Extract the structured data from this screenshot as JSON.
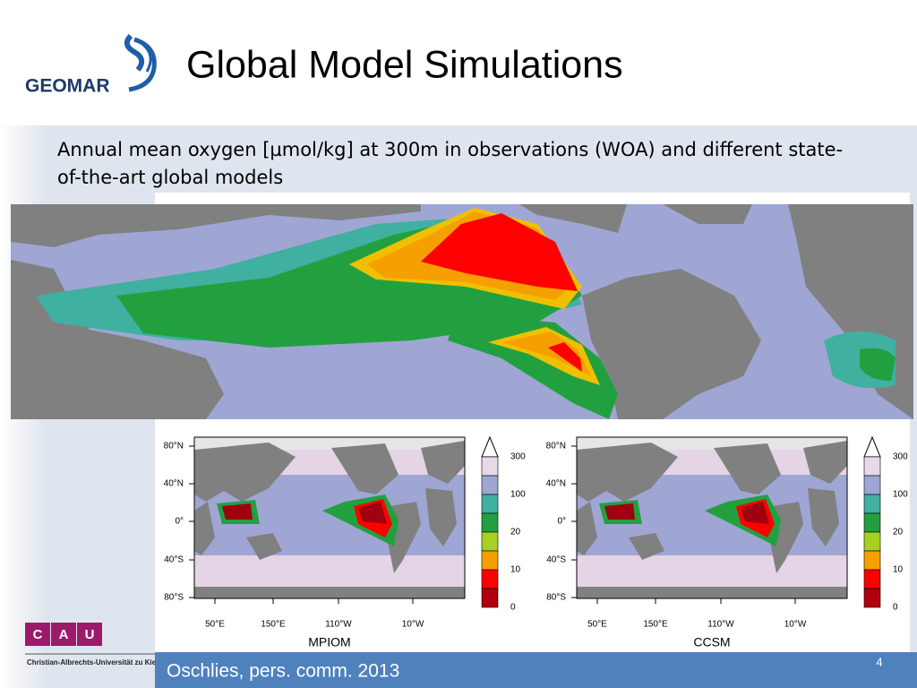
{
  "header": {
    "logo": "GEOMAR",
    "title": "Global Model Simulations"
  },
  "subtitle": "Annual mean oxygen [µmol/kg] at 300m in observations (WOA) and different state-of-the-art global models",
  "maps": [
    {
      "name": "MPIOM",
      "lat_labels": [
        "80°N",
        "40°N",
        "0°",
        "40°S",
        "80°S"
      ],
      "lon_labels": [
        "50°E",
        "150°E",
        "110°W",
        "10°W"
      ],
      "colorbar_labels": [
        "300",
        "100",
        "20",
        "10",
        "0"
      ]
    },
    {
      "name": "CCSM",
      "lat_labels": [
        "80°N",
        "40°N",
        "0°",
        "40°S",
        "80°S"
      ],
      "lon_labels": [
        "50°E",
        "150°E",
        "110°W",
        "10°W"
      ],
      "colorbar_labels": [
        "300",
        "100",
        "20",
        "10",
        "0"
      ]
    }
  ],
  "footer": {
    "cau_letters": [
      "C",
      "A",
      "U"
    ],
    "university": "Christian-Albrechts-Universität zu Kiel",
    "citation": "Oschlies, pers. comm. 2013",
    "page": "4"
  }
}
